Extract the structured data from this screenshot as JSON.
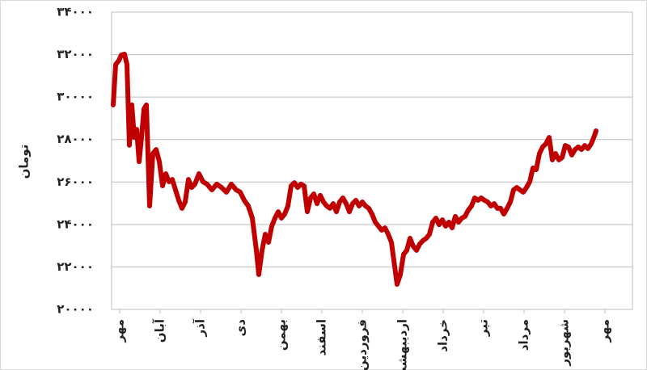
{
  "chart_data": {
    "type": "line",
    "ylabel": "تومان",
    "xlim": [
      -0.2,
      12.68
    ],
    "xticks": [
      {
        "value": 0,
        "label": "مهر"
      },
      {
        "value": 1,
        "label": "آبان"
      },
      {
        "value": 2,
        "label": "آذر"
      },
      {
        "value": 3,
        "label": "دی"
      },
      {
        "value": 4,
        "label": "بهمن"
      },
      {
        "value": 5,
        "label": "اسفند"
      },
      {
        "value": 6,
        "label": "فروردین"
      },
      {
        "value": 7,
        "label": "اردیبهشت"
      },
      {
        "value": 8,
        "label": "خرداد"
      },
      {
        "value": 9,
        "label": "تیر"
      },
      {
        "value": 10,
        "label": "مرداد"
      },
      {
        "value": 11,
        "label": "شهریور"
      },
      {
        "value": 12,
        "label": "مهر"
      }
    ],
    "ylim": [
      20000,
      34000
    ],
    "yticks": [
      {
        "value": 20000,
        "label": "۲۰۰۰۰"
      },
      {
        "value": 22000,
        "label": "۲۲۰۰۰"
      },
      {
        "value": 24000,
        "label": "۲۴۰۰۰"
      },
      {
        "value": 26000,
        "label": "۲۶۰۰۰"
      },
      {
        "value": 28000,
        "label": "۲۸۰۰۰"
      },
      {
        "value": 30000,
        "label": "۳۰۰۰۰"
      },
      {
        "value": 32000,
        "label": "۳۲۰۰۰"
      },
      {
        "value": 34000,
        "label": "۳۴۰۰۰"
      }
    ],
    "grid": true,
    "x": [
      -0.16,
      -0.1,
      -0.02,
      0.04,
      0.12,
      0.18,
      0.24,
      0.3,
      0.36,
      0.42,
      0.48,
      0.54,
      0.6,
      0.66,
      0.74,
      0.82,
      0.9,
      0.98,
      1.06,
      1.14,
      1.22,
      1.3,
      1.38,
      1.46,
      1.54,
      1.62,
      1.7,
      1.78,
      1.86,
      1.96,
      2.06,
      2.16,
      2.28,
      2.4,
      2.52,
      2.64,
      2.76,
      2.88,
      2.98,
      3.08,
      3.18,
      3.28,
      3.38,
      3.44,
      3.52,
      3.6,
      3.68,
      3.76,
      3.84,
      3.92,
      4.0,
      4.08,
      4.16,
      4.24,
      4.32,
      4.4,
      4.48,
      4.56,
      4.64,
      4.72,
      4.8,
      4.88,
      4.96,
      5.04,
      5.12,
      5.2,
      5.28,
      5.36,
      5.44,
      5.52,
      5.6,
      5.68,
      5.76,
      5.84,
      5.92,
      6.0,
      6.08,
      6.16,
      6.24,
      6.32,
      6.4,
      6.48,
      6.56,
      6.64,
      6.72,
      6.8,
      6.86,
      6.94,
      7.02,
      7.1,
      7.18,
      7.26,
      7.34,
      7.42,
      7.5,
      7.58,
      7.66,
      7.74,
      7.82,
      7.9,
      7.98,
      8.06,
      8.14,
      8.22,
      8.3,
      8.38,
      8.46,
      8.54,
      8.62,
      8.7,
      8.78,
      8.86,
      8.94,
      9.02,
      9.1,
      9.18,
      9.26,
      9.34,
      9.42,
      9.5,
      9.58,
      9.66,
      9.74,
      9.82,
      9.9,
      9.98,
      10.06,
      10.14,
      10.22,
      10.3,
      10.38,
      10.46,
      10.54,
      10.62,
      10.7,
      10.78,
      10.86,
      10.94,
      11.02,
      11.1,
      11.18,
      11.26,
      11.34,
      11.42,
      11.5,
      11.58,
      11.66,
      11.74,
      11.78
    ],
    "series": [
      {
        "color": "#c00000",
        "values": [
          29630,
          31530,
          31720,
          31980,
          32020,
          31530,
          27730,
          29630,
          28100,
          28480,
          26960,
          28100,
          29440,
          29630,
          24870,
          27340,
          27530,
          26960,
          25820,
          26390,
          26010,
          26120,
          25630,
          25140,
          24760,
          25060,
          26120,
          25740,
          25900,
          26390,
          26010,
          25900,
          25630,
          25900,
          25740,
          25520,
          25900,
          25630,
          25520,
          25140,
          24870,
          24300,
          22780,
          21640,
          22780,
          23540,
          23160,
          23920,
          24300,
          24600,
          24300,
          24490,
          24870,
          25820,
          25970,
          25740,
          25900,
          25820,
          24600,
          25250,
          25440,
          24980,
          25370,
          25060,
          24870,
          24760,
          24980,
          24600,
          25060,
          25250,
          24980,
          24600,
          24980,
          25140,
          24870,
          25060,
          24870,
          24760,
          24490,
          24110,
          23920,
          23730,
          23840,
          23540,
          23160,
          22020,
          21180,
          21640,
          22590,
          22780,
          23350,
          22970,
          22780,
          23080,
          23240,
          23350,
          23540,
          24110,
          24300,
          23990,
          24220,
          23920,
          24110,
          23840,
          24380,
          24110,
          24300,
          24380,
          24680,
          24870,
          25250,
          25140,
          25250,
          25140,
          25060,
          24870,
          24980,
          24760,
          24760,
          24490,
          24760,
          25060,
          25630,
          25740,
          25630,
          25520,
          25740,
          26010,
          26660,
          26580,
          27340,
          27650,
          27800,
          28100,
          27040,
          27340,
          27040,
          27150,
          27720,
          27650,
          27270,
          27530,
          27650,
          27530,
          27720,
          27570,
          27800,
          28180,
          28410
        ]
      }
    ]
  }
}
